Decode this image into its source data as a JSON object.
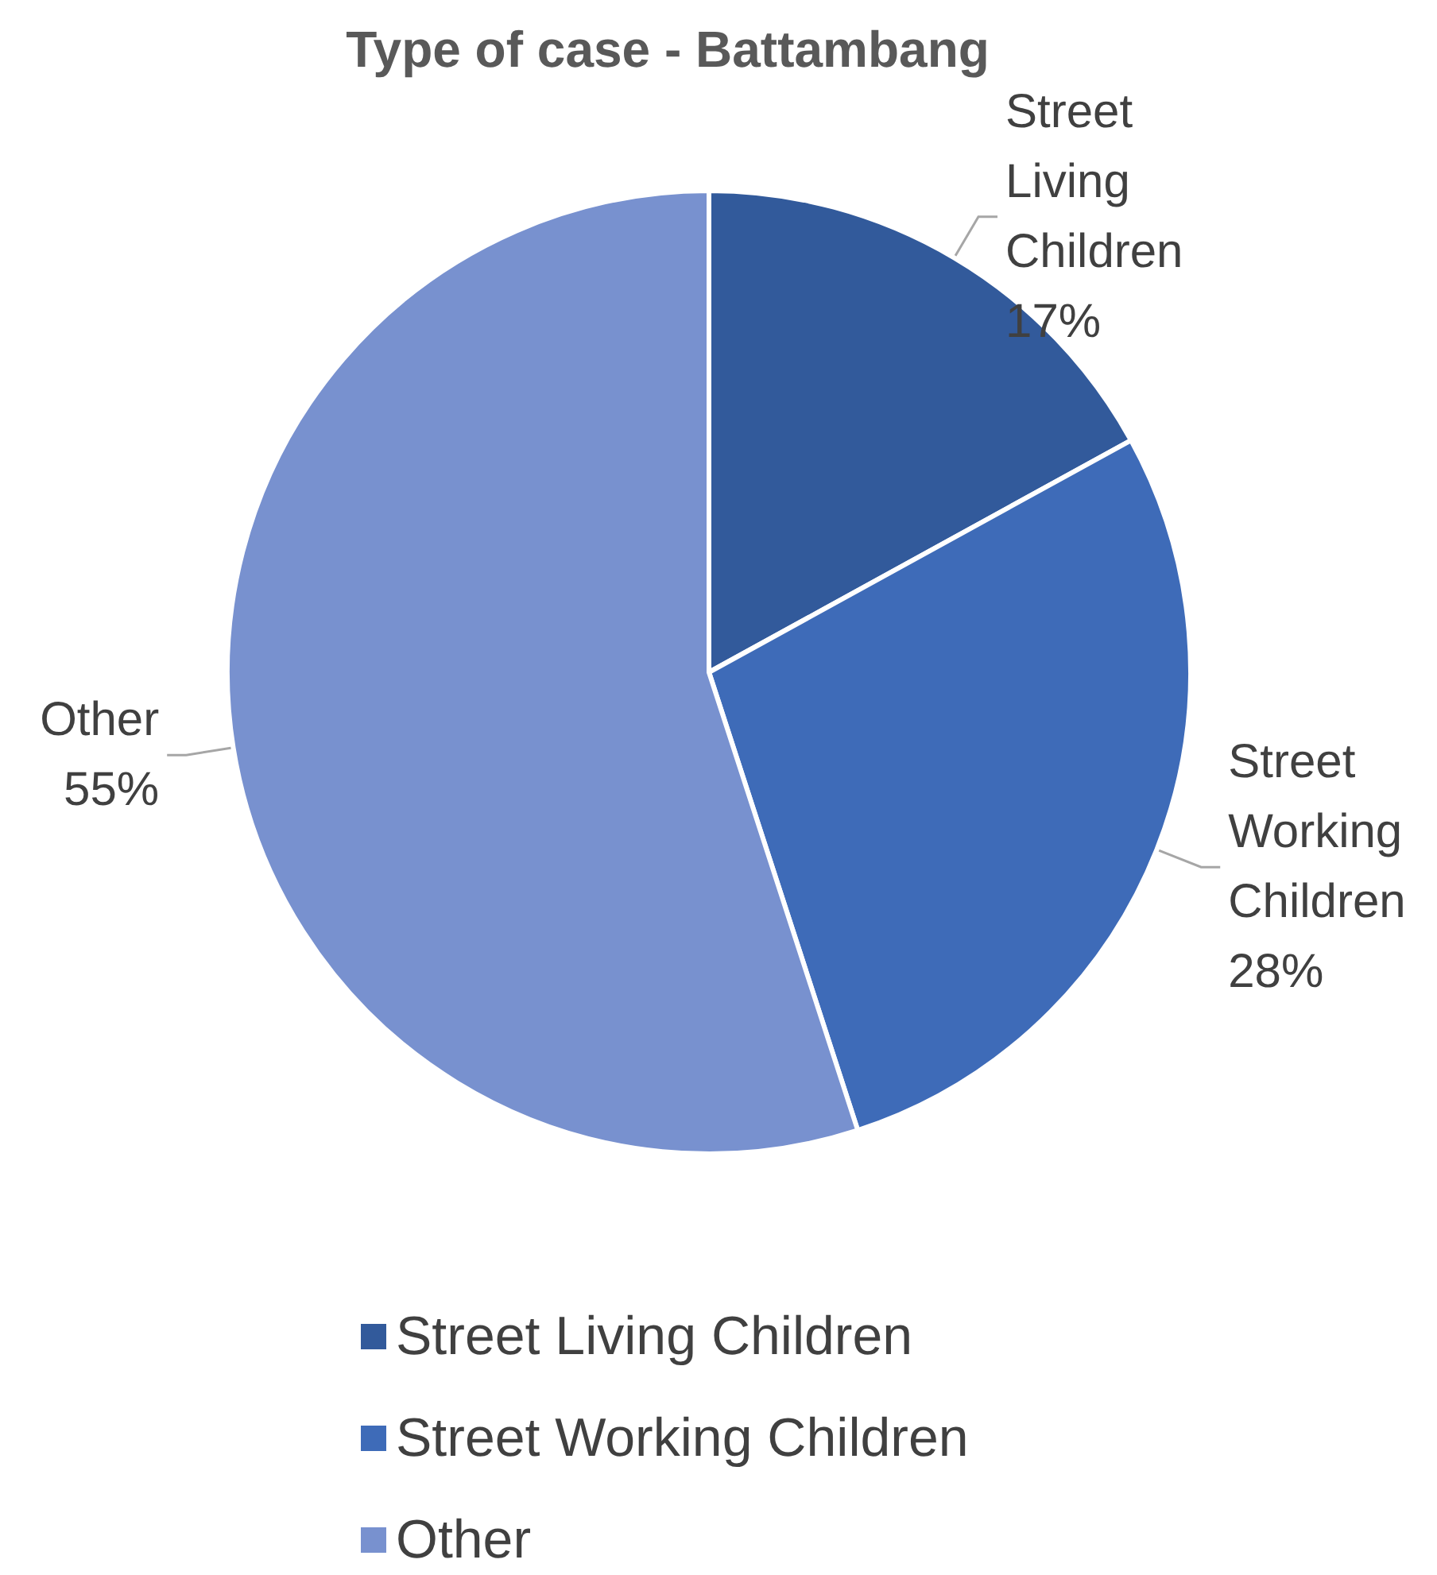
{
  "chart_data": {
    "type": "pie",
    "title": "Type of case - Battambang",
    "categories": [
      "Street Living Children",
      "Street Working Children",
      "Other"
    ],
    "values": [
      17,
      28,
      55
    ],
    "colors": [
      "#325a9b",
      "#3e6bb8",
      "#7891cf"
    ],
    "value_labels": [
      "17%",
      "28%",
      "55%"
    ],
    "legend": "bottom"
  }
}
